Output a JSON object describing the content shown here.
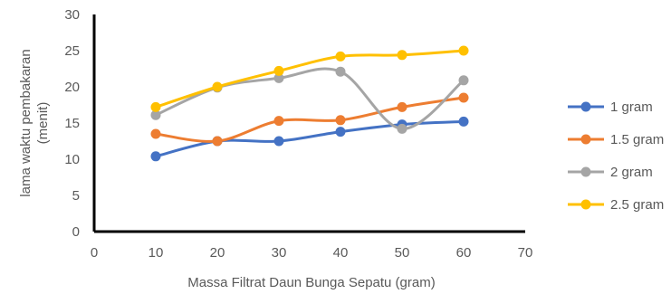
{
  "chart_data": {
    "type": "line",
    "title": "",
    "xlabel": "Massa Filtrat Daun Bunga Sepatu (gram)",
    "ylabel_lines": [
      "lama waktu pembakaran",
      "(menit)"
    ],
    "xlim": [
      0,
      70
    ],
    "ylim": [
      0,
      30
    ],
    "x_ticks": [
      0,
      10,
      20,
      30,
      40,
      50,
      60,
      70
    ],
    "y_ticks": [
      0,
      5,
      10,
      15,
      20,
      25,
      30
    ],
    "grid": false,
    "smooth": true,
    "legend_position": "right",
    "x": [
      10,
      20,
      30,
      40,
      50,
      60
    ],
    "series": [
      {
        "name": "1 gram",
        "color": "#4472C4",
        "values": [
          10.4,
          12.5,
          12.5,
          13.8,
          14.8,
          15.2
        ]
      },
      {
        "name": "1.5 gram",
        "color": "#ED7D31",
        "values": [
          13.5,
          12.5,
          15.3,
          15.4,
          17.2,
          18.5
        ]
      },
      {
        "name": "2 gram",
        "color": "#A5A5A5",
        "values": [
          16.1,
          19.9,
          21.2,
          22.1,
          14.2,
          20.9
        ]
      },
      {
        "name": "2.5 gram",
        "color": "#FFC000",
        "values": [
          17.2,
          20.0,
          22.2,
          24.2,
          24.4,
          25.0
        ]
      }
    ]
  }
}
